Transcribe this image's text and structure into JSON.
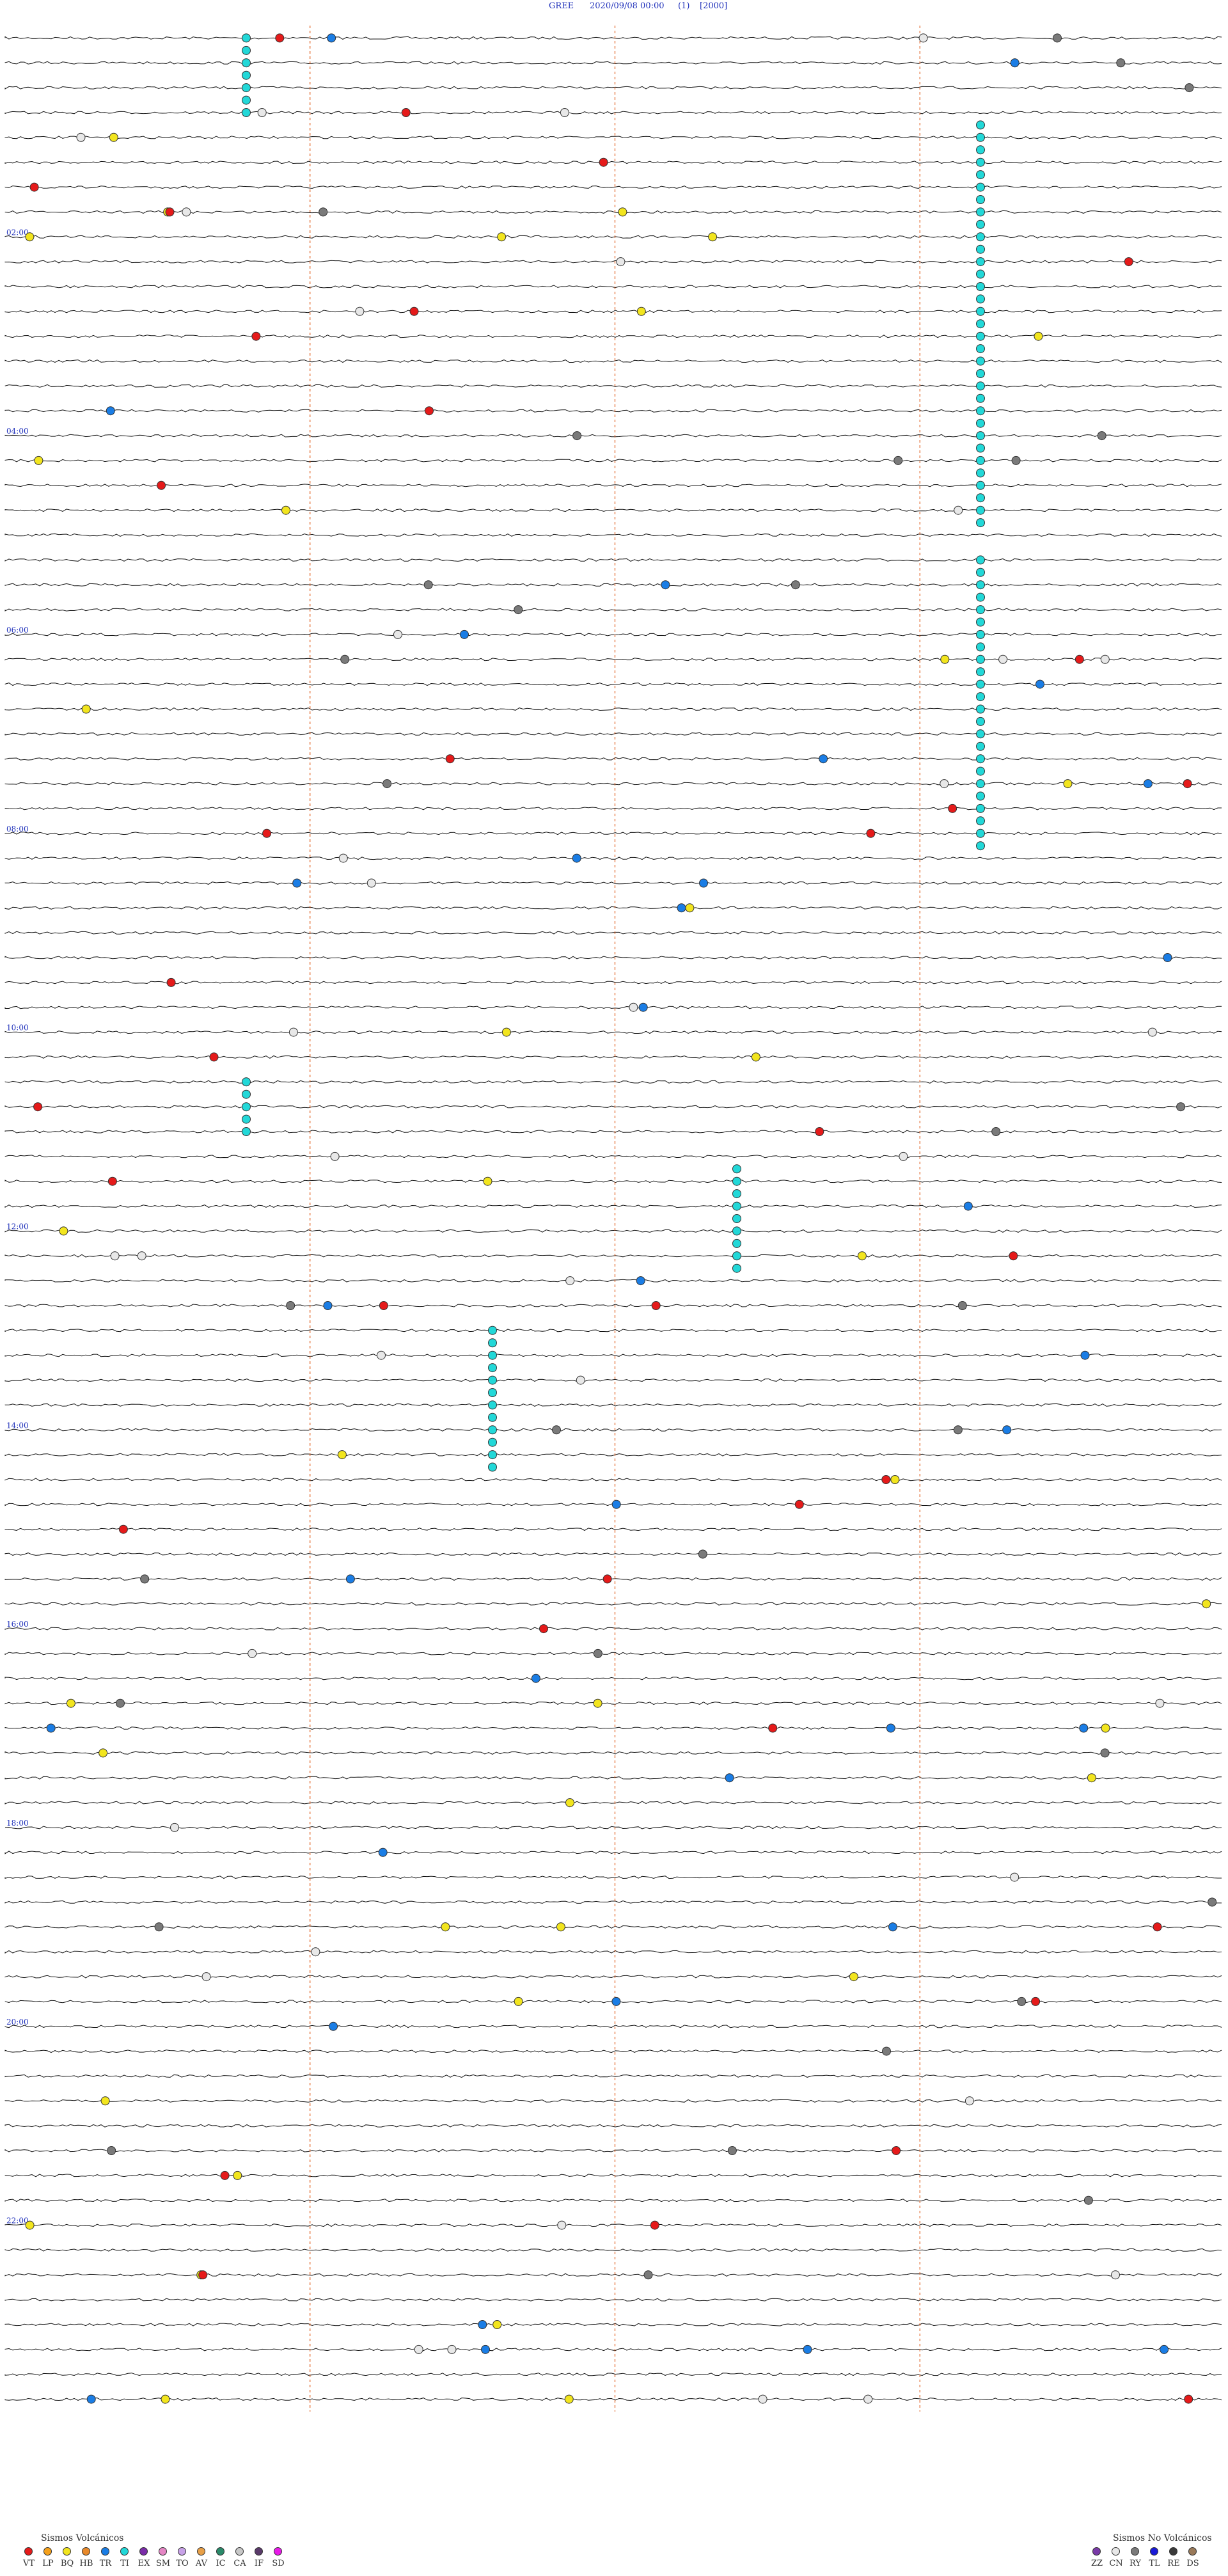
{
  "header": {
    "station": "GREE",
    "datetime": "2020/09/08 00:00",
    "channel": "(1)",
    "gain": "[2000]"
  },
  "chart_data": {
    "type": "seismogram_helicorder",
    "station": "GREE",
    "start": "2020/09/08 00:00",
    "hours": 24,
    "traces_per_hour": 4,
    "hour_labels": [
      "02:00",
      "04:00",
      "06:00",
      "08:00",
      "10:00",
      "12:00",
      "14:00",
      "16:00",
      "18:00",
      "20:00",
      "22:00"
    ],
    "dashed_minute_marks": [
      15,
      30,
      45
    ],
    "events_summary": "colored circles along traces mark classified events; a dense cyan column indicates tremor episodes"
  },
  "legend_volcanic": {
    "title": "Sismos Volcánicos",
    "items": [
      {
        "code": "VT",
        "color": "#e51a1a"
      },
      {
        "code": "LP",
        "color": "#f5a11c"
      },
      {
        "code": "BQ",
        "color": "#f2e51e"
      },
      {
        "code": "HB",
        "color": "#e8892a"
      },
      {
        "code": "TR",
        "color": "#1a7de5"
      },
      {
        "code": "TI",
        "color": "#22d8d8"
      },
      {
        "code": "EX",
        "color": "#7a2ca8"
      },
      {
        "code": "SM",
        "color": "#e586c5"
      },
      {
        "code": "TO",
        "color": "#c8a2e8"
      },
      {
        "code": "AV",
        "color": "#e8a048"
      },
      {
        "code": "IC",
        "color": "#2a8a6a"
      },
      {
        "code": "CA",
        "color": "#c8c8c8"
      },
      {
        "code": "IF",
        "color": "#5a3a6a"
      },
      {
        "code": "SD",
        "color": "#e81ae8"
      }
    ]
  },
  "legend_nonvolcanic": {
    "title": "Sismos No Volcánicos",
    "items": [
      {
        "code": "ZZ",
        "color": "#7a3aa8"
      },
      {
        "code": "CN",
        "color": "#e8e8e8"
      },
      {
        "code": "RY",
        "color": "#7a7a7a"
      },
      {
        "code": "TL",
        "color": "#1a1ad8"
      },
      {
        "code": "RE",
        "color": "#3a3a3a"
      },
      {
        "code": "DS",
        "color": "#9a7a5a"
      }
    ]
  },
  "colors": {
    "trace": "#111111",
    "dashed_marks": "#e06020",
    "hour_label": "#2233bb",
    "event_cyan": "#22d8d8",
    "event_red": "#e51a1a",
    "event_yellow": "#f2e51e",
    "event_blue": "#1a7de5",
    "event_white": "#e8e8e8",
    "event_gray": "#7a7a7a"
  }
}
